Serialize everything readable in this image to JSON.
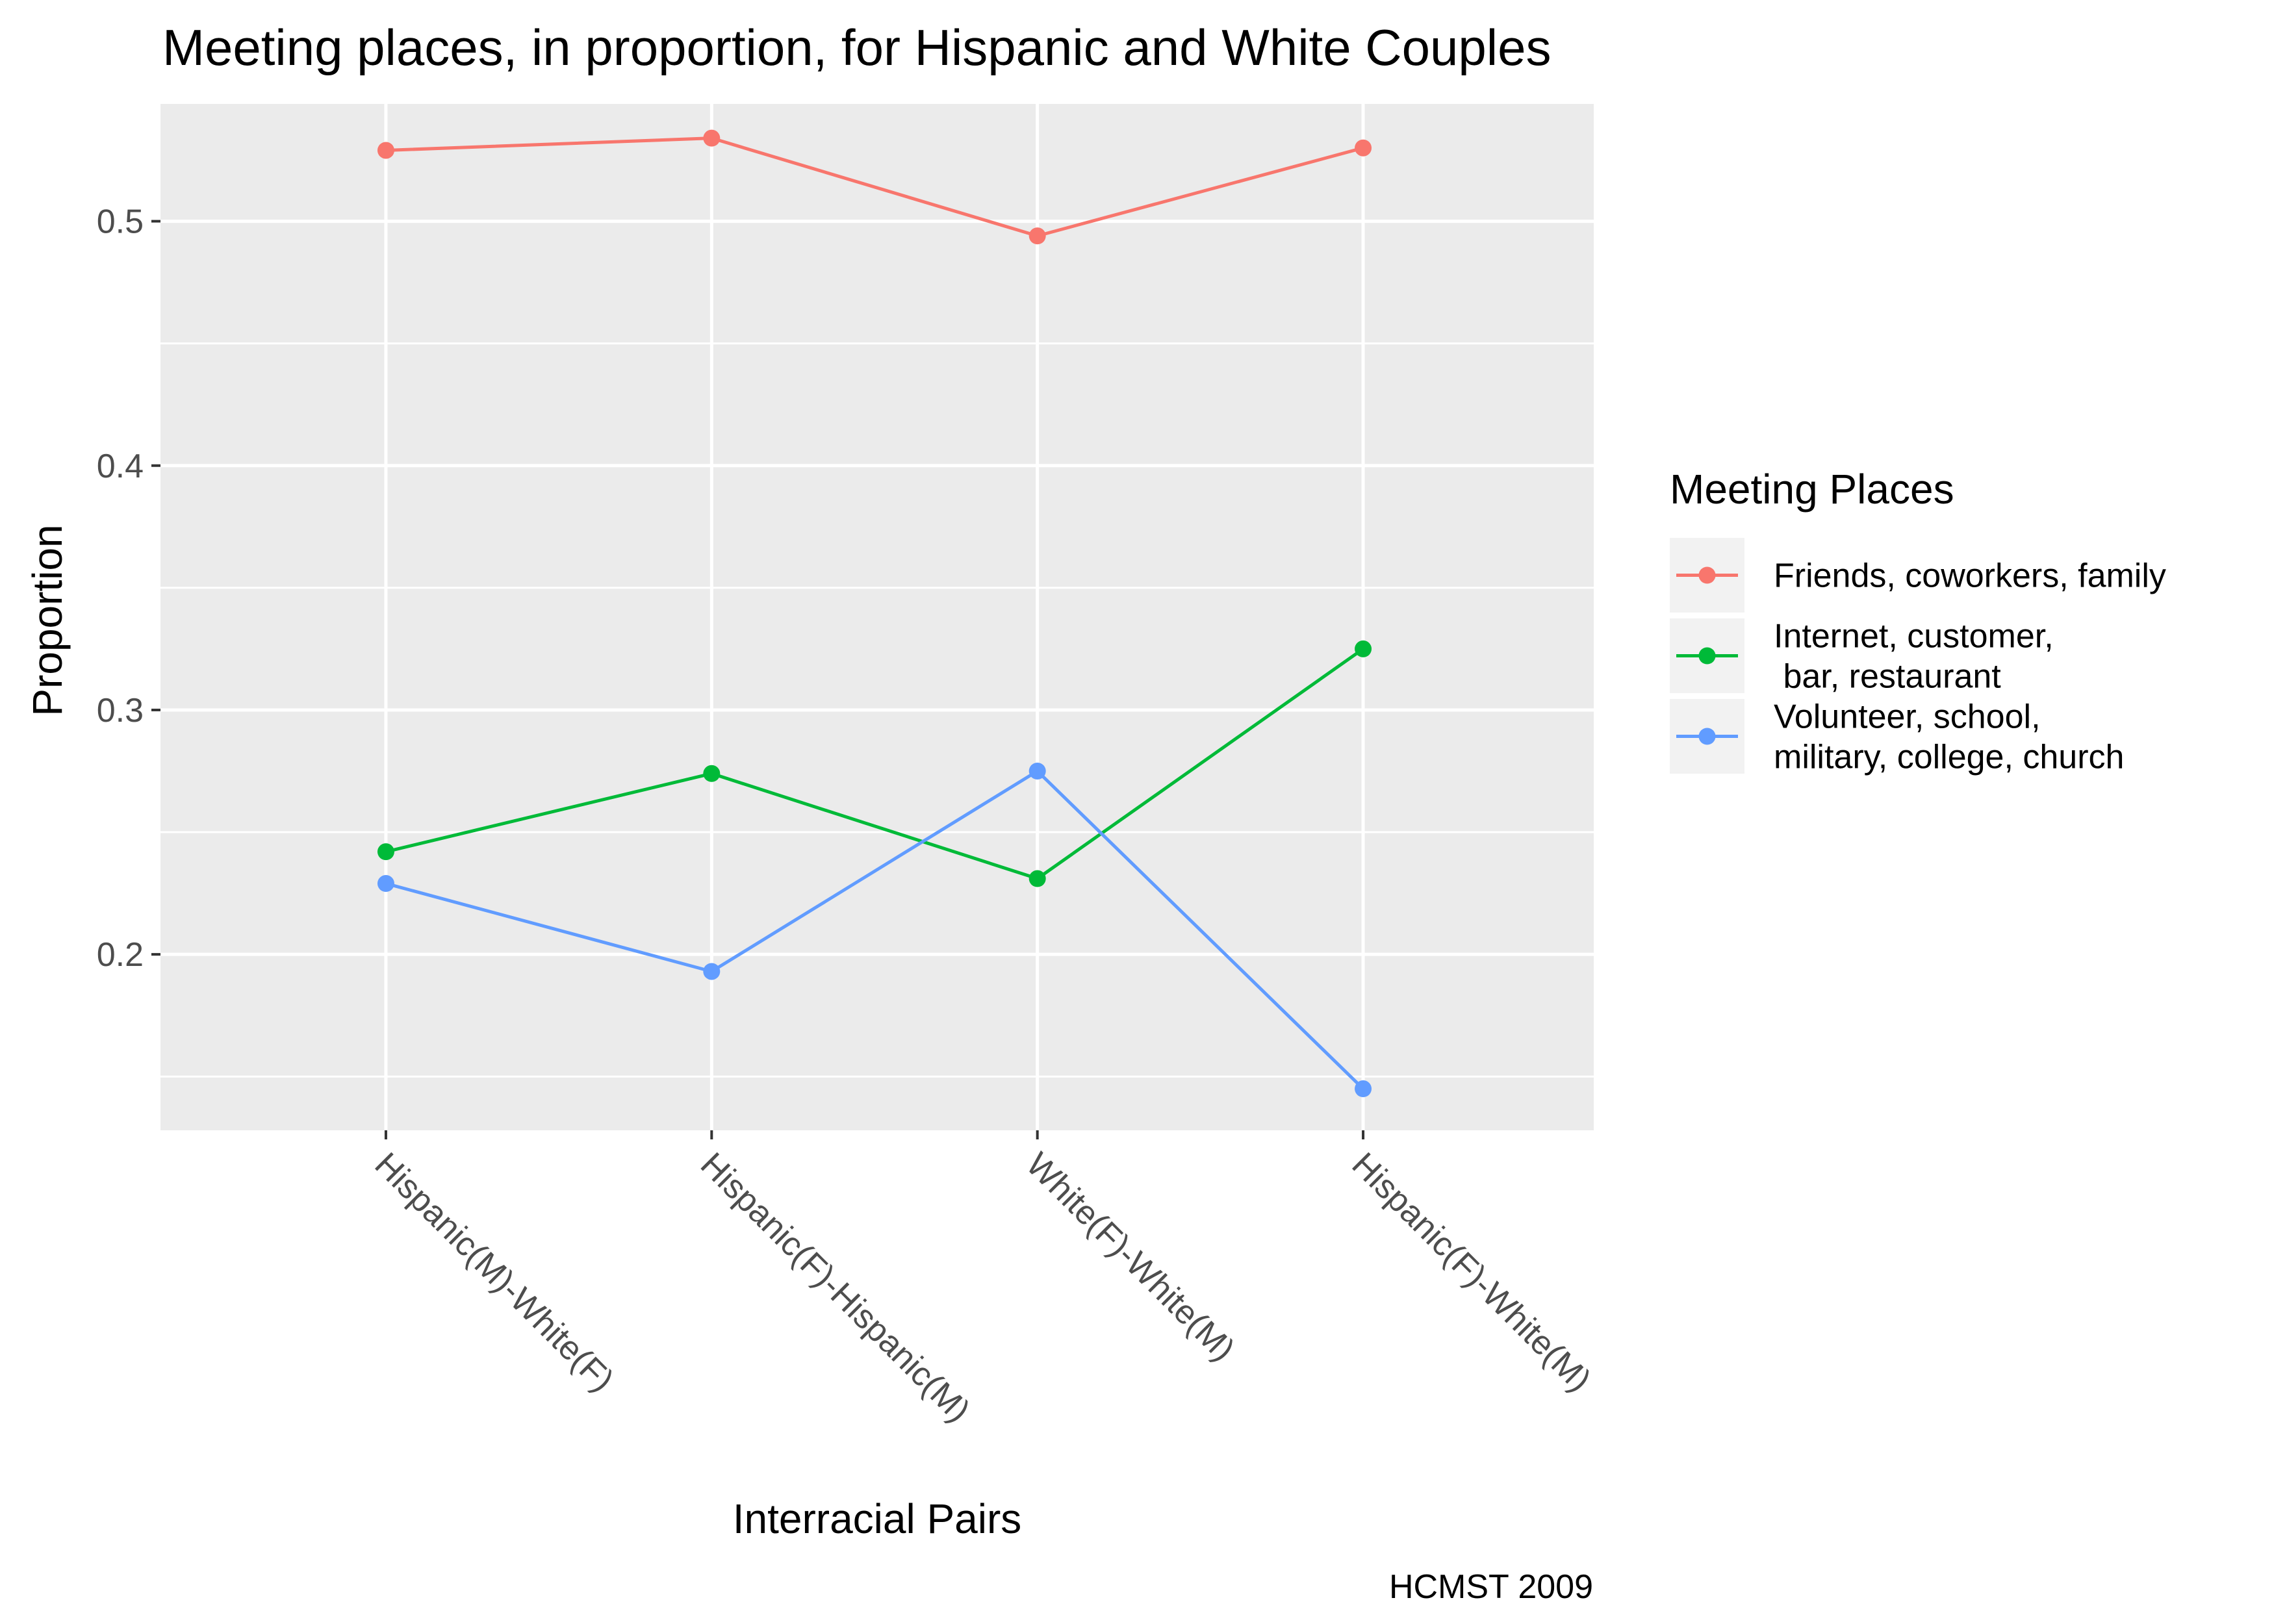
{
  "chart_data": {
    "type": "line",
    "title": "Meeting places, in proportion, for Hispanic and White Couples",
    "xlabel": "Interracial Pairs",
    "ylabel": "Proportion",
    "caption": "HCMST 2009",
    "categories": [
      "Hispanic(M)-White(F)",
      "Hispanic(F)-Hispanic(M)",
      "White(F)-White(M)",
      "Hispanic(F)-White(M)"
    ],
    "ylim": [
      0.128,
      0.548
    ],
    "yticks": [
      0.2,
      0.3,
      0.4,
      0.5
    ],
    "grid": true,
    "legend": {
      "title": "Meeting Places",
      "position": "right"
    },
    "series": [
      {
        "name": "Friends, coworkers, family",
        "label_lines": [
          "Friends, coworkers, family"
        ],
        "color": "#F8766D",
        "values": [
          0.529,
          0.534,
          0.494,
          0.53
        ]
      },
      {
        "name": "Internet, customer, bar, restaurant",
        "label_lines": [
          "Internet, customer,",
          " bar, restaurant"
        ],
        "color": "#00BA38",
        "values": [
          0.242,
          0.274,
          0.231,
          0.325
        ]
      },
      {
        "name": "Volunteer, school, military, college, church",
        "label_lines": [
          "Volunteer, school,",
          "military, college, church"
        ],
        "color": "#619CFF",
        "values": [
          0.229,
          0.193,
          0.275,
          0.145
        ]
      }
    ]
  }
}
